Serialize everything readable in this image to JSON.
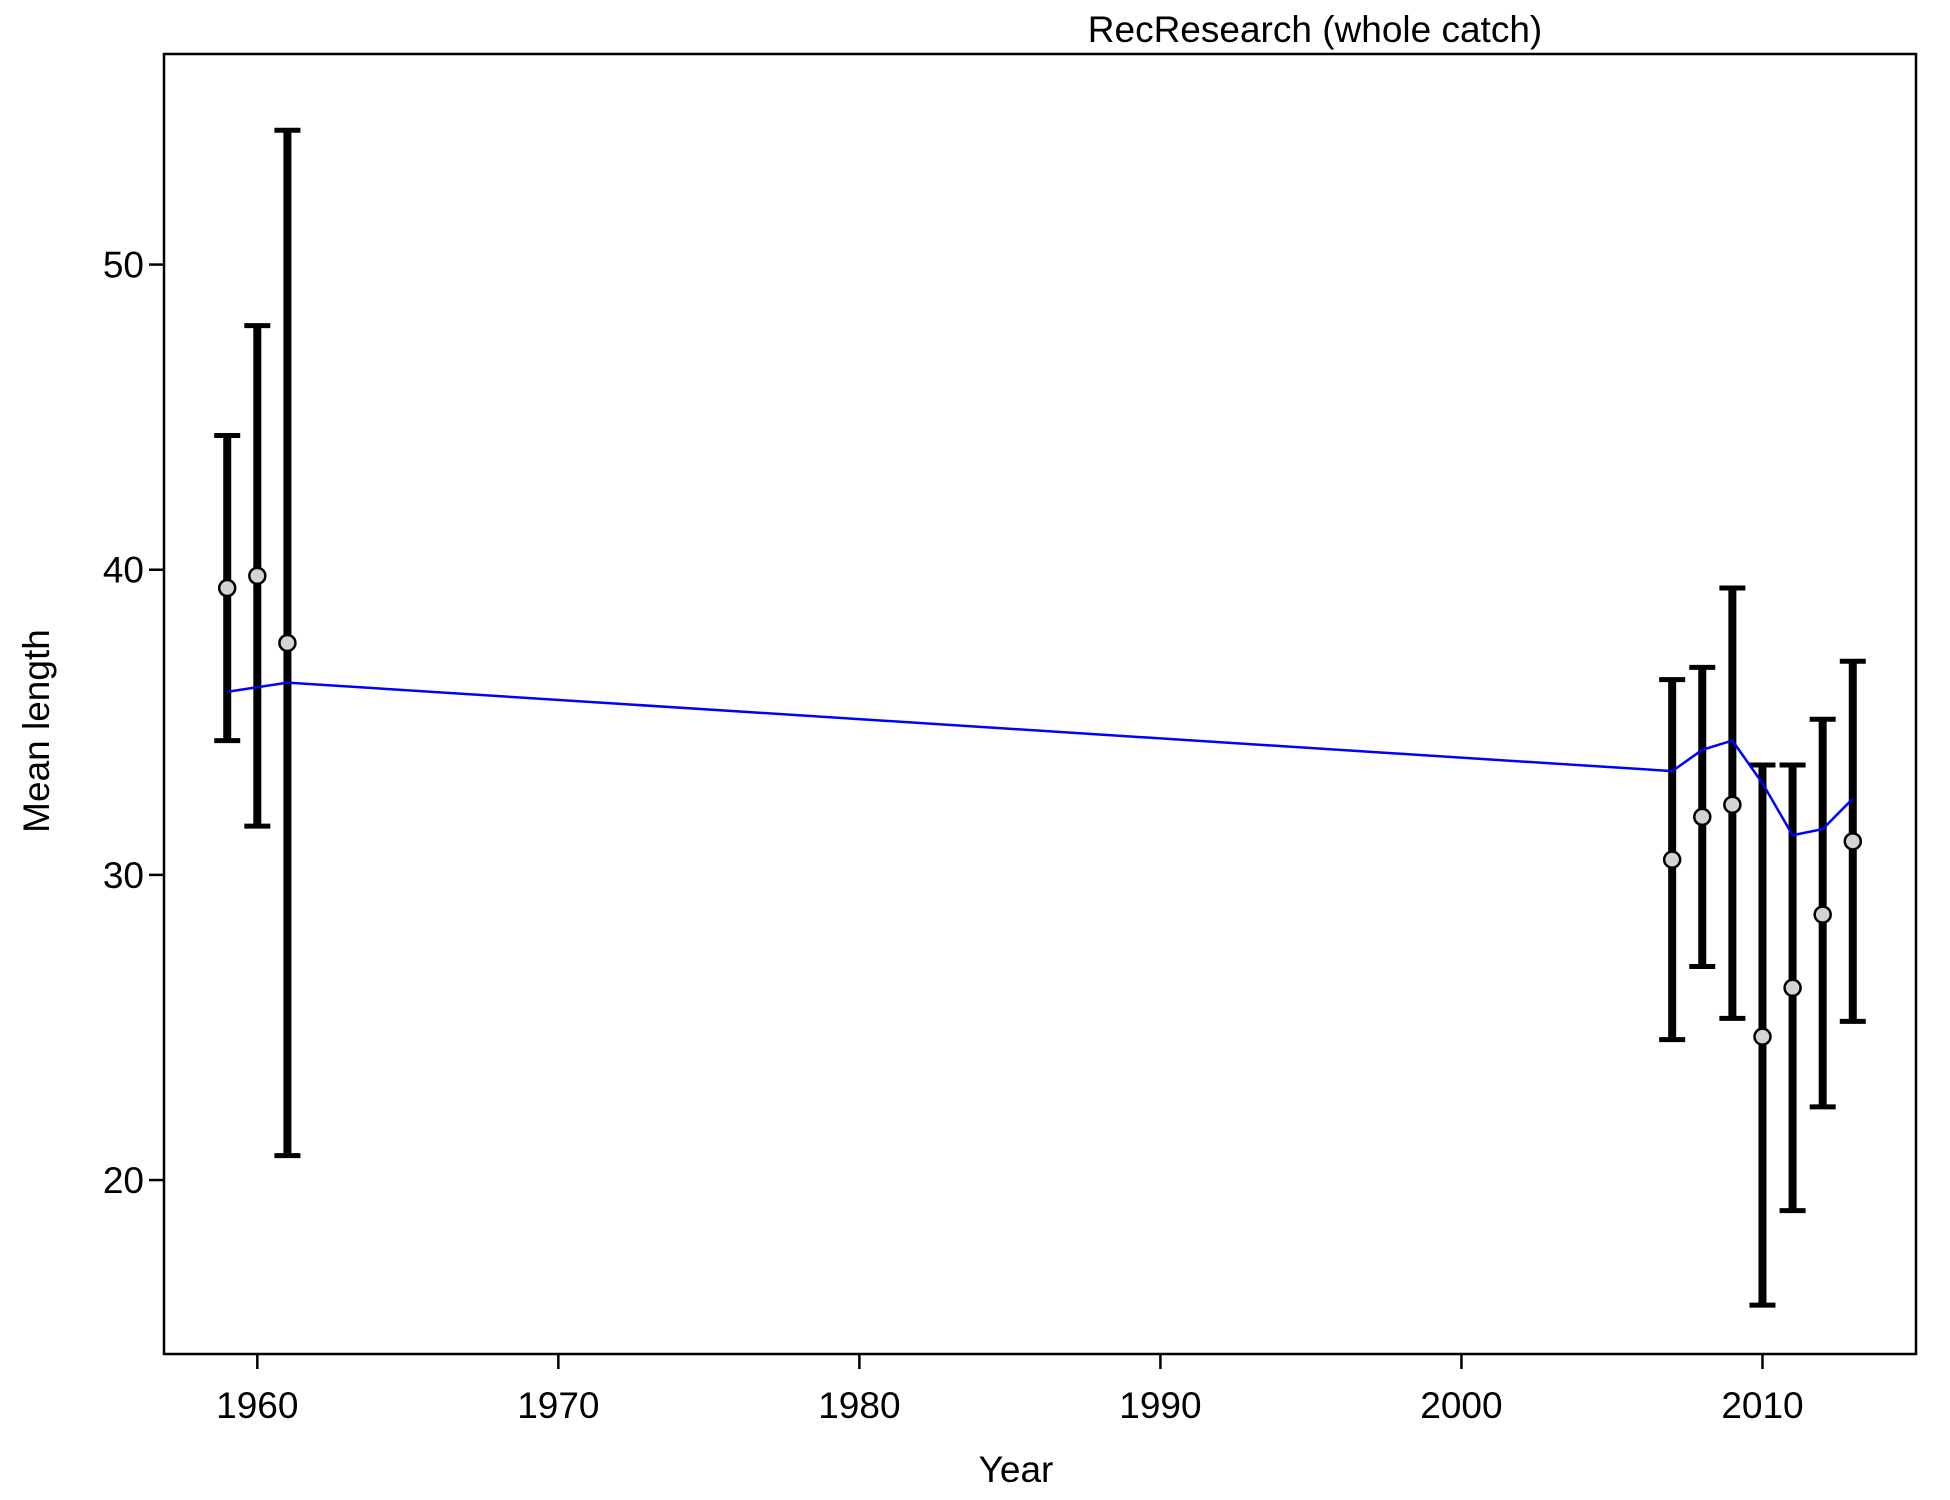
{
  "chart_data": {
    "type": "scatter",
    "title": "RecResearch (whole catch)",
    "xlabel": "Year",
    "ylabel": "Mean length",
    "xlim": [
      1956.9,
      2015.1
    ],
    "ylim": [
      14.3,
      56.9
    ],
    "x_ticks": [
      1960,
      1970,
      1980,
      1990,
      2000,
      2010
    ],
    "y_ticks": [
      20,
      30,
      40,
      50
    ],
    "grid": false,
    "legend": "none",
    "colors": {
      "observed_fill": "#d3d3d3",
      "observed_stroke": "#000000",
      "error_bar": "#000000",
      "expected_line": "#0000ff"
    },
    "series": [
      {
        "kind": "observed_with_intervals",
        "points": [
          {
            "x": 1959,
            "y": 39.4,
            "lo": 34.4,
            "hi": 44.4
          },
          {
            "x": 1960,
            "y": 39.8,
            "lo": 31.6,
            "hi": 48.0
          },
          {
            "x": 1961,
            "y": 37.6,
            "lo": 20.8,
            "hi": 54.4
          },
          {
            "x": 2007,
            "y": 30.5,
            "lo": 24.6,
            "hi": 36.4
          },
          {
            "x": 2008,
            "y": 31.9,
            "lo": 27.0,
            "hi": 36.8
          },
          {
            "x": 2009,
            "y": 32.3,
            "lo": 25.3,
            "hi": 39.4
          },
          {
            "x": 2010,
            "y": 24.7,
            "lo": 15.9,
            "hi": 33.6
          },
          {
            "x": 2011,
            "y": 26.3,
            "lo": 19.0,
            "hi": 33.6
          },
          {
            "x": 2012,
            "y": 28.7,
            "lo": 22.4,
            "hi": 35.1
          },
          {
            "x": 2013,
            "y": 31.1,
            "lo": 25.2,
            "hi": 37.0
          }
        ]
      },
      {
        "kind": "expected_line",
        "x": [
          1959,
          1961,
          2007,
          2008,
          2009,
          2010,
          2011,
          2012,
          2013
        ],
        "y": [
          36.0,
          36.3,
          33.4,
          34.1,
          34.4,
          33.0,
          31.3,
          31.5,
          32.5
        ]
      }
    ]
  }
}
